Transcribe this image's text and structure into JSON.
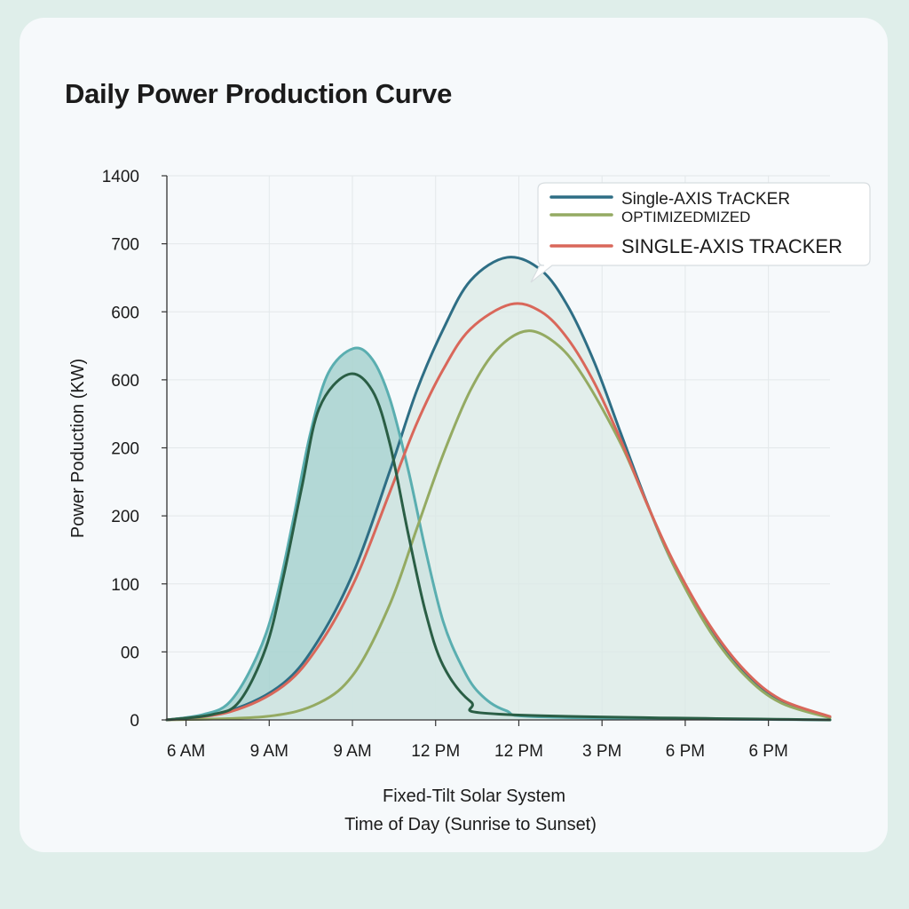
{
  "chart_data": {
    "type": "area",
    "title": "Daily Power Production Curve",
    "xlabel": "Fixed-Tilt Solar System",
    "xlabel2": "Time of Day (Sunrise to Sunset)",
    "ylabel": "Power Poduction (KW)",
    "x_tick_labels": [
      "6 AM",
      "9 AM",
      "9 AM",
      "12 PM",
      "12 PM",
      "3 PM",
      "6 PM",
      "6 PM"
    ],
    "y_tick_labels": [
      "0",
      "00",
      "100",
      "200",
      "200",
      "600",
      "600",
      "700",
      "1400"
    ],
    "note": "",
    "xlim": [
      -0.23,
      7.74
    ],
    "ylim": [
      0,
      8
    ],
    "grid": true,
    "legend_position": "top-right",
    "series": [
      {
        "name": "",
        "color": "#5aaeb0",
        "fill": "#a7d2cf",
        "points": [
          [
            -0.23,
            0
          ],
          [
            0.21,
            0.08
          ],
          [
            0.53,
            0.27
          ],
          [
            0.85,
            0.93
          ],
          [
            1.07,
            1.71
          ],
          [
            1.28,
            2.89
          ],
          [
            1.49,
            4.19
          ],
          [
            1.71,
            5.1
          ],
          [
            2.01,
            5.46
          ],
          [
            2.24,
            5.3
          ],
          [
            2.45,
            4.72
          ],
          [
            2.67,
            3.68
          ],
          [
            2.88,
            2.49
          ],
          [
            3.09,
            1.45
          ],
          [
            3.31,
            0.8
          ],
          [
            3.52,
            0.4
          ],
          [
            3.84,
            0.14
          ],
          [
            4.38,
            0.04
          ],
          [
            7.74,
            0
          ]
        ]
      },
      {
        "name": "",
        "color": "#2a5e45",
        "fill": null,
        "points": [
          [
            -0.23,
            0
          ],
          [
            0.32,
            0.08
          ],
          [
            0.64,
            0.27
          ],
          [
            0.96,
            1.06
          ],
          [
            1.17,
            2.1
          ],
          [
            1.39,
            3.41
          ],
          [
            1.6,
            4.58
          ],
          [
            1.95,
            5.08
          ],
          [
            2.24,
            4.84
          ],
          [
            2.45,
            4.06
          ],
          [
            2.67,
            2.74
          ],
          [
            2.88,
            1.58
          ],
          [
            3.09,
            0.8
          ],
          [
            3.42,
            0.27
          ],
          [
            3.84,
            0.08
          ],
          [
            7.74,
            0
          ]
        ]
      },
      {
        "name": "Single-AXIS TrACKER",
        "color": "#2e6e85",
        "fill": "#dbe9e6",
        "points": [
          [
            -0.23,
            0
          ],
          [
            0.53,
            0.14
          ],
          [
            1.17,
            0.54
          ],
          [
            1.6,
            1.19
          ],
          [
            2.03,
            2.22
          ],
          [
            2.45,
            3.66
          ],
          [
            2.77,
            4.83
          ],
          [
            3.09,
            5.74
          ],
          [
            3.42,
            6.46
          ],
          [
            3.86,
            6.8
          ],
          [
            4.27,
            6.61
          ],
          [
            4.59,
            6.08
          ],
          [
            4.91,
            5.25
          ],
          [
            5.23,
            4.2
          ],
          [
            5.55,
            3.16
          ],
          [
            5.87,
            2.25
          ],
          [
            6.3,
            1.32
          ],
          [
            6.72,
            0.67
          ],
          [
            7.15,
            0.27
          ],
          [
            7.74,
            0.04
          ]
        ]
      },
      {
        "name": "OPTIMIZEDMIZED",
        "color": "#94aa62",
        "fill": null,
        "points": [
          [
            -0.23,
            0
          ],
          [
            0.96,
            0.05
          ],
          [
            1.6,
            0.25
          ],
          [
            2.03,
            0.7
          ],
          [
            2.45,
            1.7
          ],
          [
            2.77,
            2.8
          ],
          [
            3.09,
            3.9
          ],
          [
            3.42,
            4.85
          ],
          [
            3.74,
            5.45
          ],
          [
            4.11,
            5.72
          ],
          [
            4.48,
            5.5
          ],
          [
            4.8,
            5.0
          ],
          [
            5.23,
            4.05
          ],
          [
            5.55,
            3.15
          ],
          [
            5.87,
            2.25
          ],
          [
            6.3,
            1.3
          ],
          [
            6.72,
            0.65
          ],
          [
            7.15,
            0.25
          ],
          [
            7.74,
            0.03
          ]
        ]
      },
      {
        "name": "SINGLE-AXIS TRACKER",
        "color": "#d9675a",
        "fill": null,
        "points": [
          [
            -0.23,
            0
          ],
          [
            0.53,
            0.12
          ],
          [
            1.17,
            0.5
          ],
          [
            1.6,
            1.1
          ],
          [
            2.03,
            2.05
          ],
          [
            2.45,
            3.35
          ],
          [
            2.77,
            4.35
          ],
          [
            3.09,
            5.15
          ],
          [
            3.42,
            5.75
          ],
          [
            3.9,
            6.11
          ],
          [
            4.27,
            6.0
          ],
          [
            4.59,
            5.6
          ],
          [
            4.91,
            4.95
          ],
          [
            5.23,
            4.1
          ],
          [
            5.55,
            3.15
          ],
          [
            5.87,
            2.3
          ],
          [
            6.3,
            1.38
          ],
          [
            6.72,
            0.72
          ],
          [
            7.15,
            0.3
          ],
          [
            7.74,
            0.05
          ]
        ]
      }
    ],
    "legend": [
      {
        "label": "Single-AXIS TrACKER",
        "color": "#2e6e85"
      },
      {
        "label": "OPTIMIZEDMIZED",
        "color": "#94aa62"
      },
      {
        "label": "SINGLE-AXIS TRACKER",
        "color": "#d9675a"
      }
    ]
  }
}
